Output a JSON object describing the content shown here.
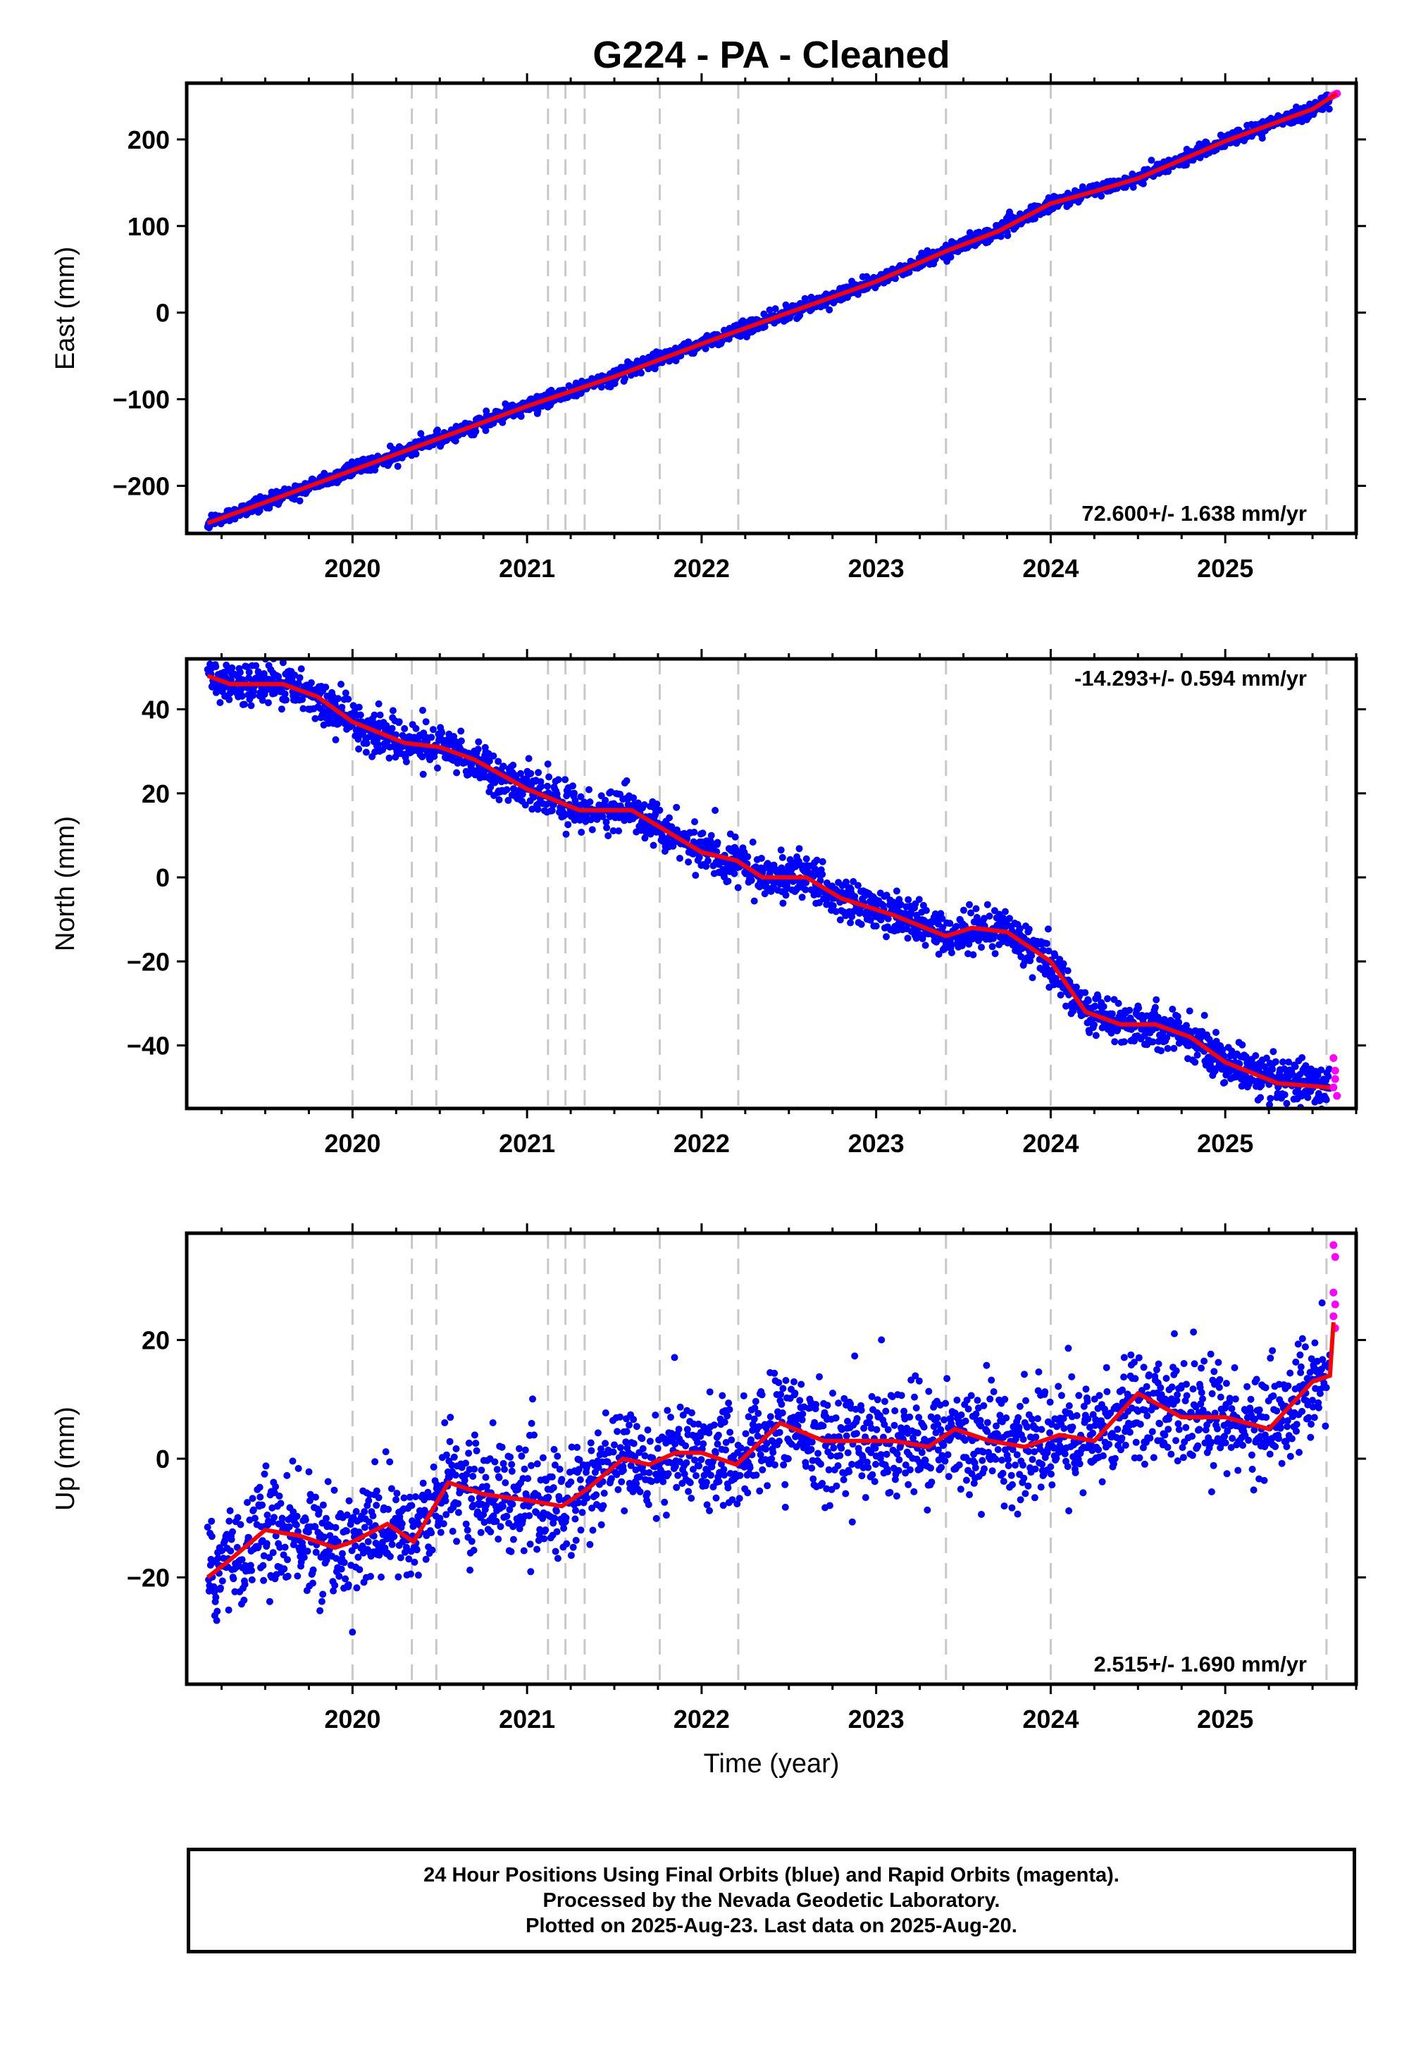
{
  "title": "G224  - PA - Cleaned",
  "colors": {
    "final": "#0000ff",
    "rapid": "#ff00ff",
    "model": "#ff0000",
    "event_line": "#c8c8c8",
    "axes": "#000000"
  },
  "chart_data": [
    {
      "type": "scatter",
      "ylabel": "East (mm)",
      "xlabel": "",
      "xlim": [
        2019.05,
        2025.75
      ],
      "ylim": [
        -255,
        265
      ],
      "yticks": [
        -200,
        -100,
        0,
        100,
        200
      ],
      "xticks": [
        2020,
        2021,
        2022,
        2023,
        2024,
        2025
      ],
      "rate_label": "72.600+/- 1.638 mm/yr",
      "rate_position": "bottom-right",
      "model": [
        [
          2019.17,
          -243
        ],
        [
          2019.5,
          -219
        ],
        [
          2020.0,
          -182
        ],
        [
          2020.5,
          -145
        ],
        [
          2021.0,
          -108
        ],
        [
          2021.5,
          -74
        ],
        [
          2022.0,
          -36
        ],
        [
          2022.5,
          0
        ],
        [
          2023.0,
          36
        ],
        [
          2023.4,
          71
        ],
        [
          2023.7,
          94
        ],
        [
          2024.0,
          126
        ],
        [
          2024.25,
          140
        ],
        [
          2024.5,
          155
        ],
        [
          2025.0,
          198
        ],
        [
          2025.5,
          235
        ],
        [
          2025.64,
          253
        ]
      ],
      "noise": 4,
      "rapid": [
        [
          2025.61,
          250
        ],
        [
          2025.62,
          251
        ],
        [
          2025.63,
          252
        ],
        [
          2025.64,
          253
        ]
      ]
    },
    {
      "type": "scatter",
      "ylabel": "North (mm)",
      "xlabel": "",
      "xlim": [
        2019.05,
        2025.75
      ],
      "ylim": [
        -55,
        52
      ],
      "yticks": [
        -40,
        -20,
        0,
        20,
        40
      ],
      "xticks": [
        2020,
        2021,
        2022,
        2023,
        2024,
        2025
      ],
      "rate_label": "-14.293+/- 0.594 mm/yr",
      "rate_position": "top-right",
      "model": [
        [
          2019.17,
          48
        ],
        [
          2019.3,
          46
        ],
        [
          2019.6,
          46
        ],
        [
          2019.8,
          43
        ],
        [
          2020.0,
          37
        ],
        [
          2020.3,
          32
        ],
        [
          2020.5,
          31
        ],
        [
          2020.7,
          28
        ],
        [
          2021.0,
          21
        ],
        [
          2021.3,
          16
        ],
        [
          2021.6,
          16
        ],
        [
          2021.8,
          11
        ],
        [
          2022.0,
          6
        ],
        [
          2022.2,
          4
        ],
        [
          2022.35,
          0
        ],
        [
          2022.6,
          0
        ],
        [
          2022.8,
          -5
        ],
        [
          2023.1,
          -9
        ],
        [
          2023.4,
          -14
        ],
        [
          2023.55,
          -12
        ],
        [
          2023.75,
          -13
        ],
        [
          2024.0,
          -20
        ],
        [
          2024.2,
          -32
        ],
        [
          2024.4,
          -35
        ],
        [
          2024.6,
          -35
        ],
        [
          2024.8,
          -38
        ],
        [
          2025.0,
          -44
        ],
        [
          2025.3,
          -49
        ],
        [
          2025.6,
          -50
        ]
      ],
      "noise": 2.5,
      "rapid": [
        [
          2025.62,
          -43
        ],
        [
          2025.63,
          -48
        ],
        [
          2025.64,
          -52
        ],
        [
          2025.62,
          -50
        ],
        [
          2025.63,
          -46
        ]
      ]
    },
    {
      "type": "scatter",
      "ylabel": "Up (mm)",
      "xlabel": "Time (year)",
      "xlim": [
        2019.05,
        2025.75
      ],
      "ylim": [
        -38,
        38
      ],
      "yticks": [
        -20,
        0,
        20
      ],
      "xticks": [
        2020,
        2021,
        2022,
        2023,
        2024,
        2025
      ],
      "rate_label": "2.515+/- 1.690 mm/yr",
      "rate_position": "bottom-right",
      "model": [
        [
          2019.17,
          -20
        ],
        [
          2019.3,
          -17
        ],
        [
          2019.5,
          -12
        ],
        [
          2019.7,
          -13
        ],
        [
          2019.9,
          -15
        ],
        [
          2020.0,
          -14
        ],
        [
          2020.2,
          -11
        ],
        [
          2020.35,
          -14
        ],
        [
          2020.55,
          -4
        ],
        [
          2020.75,
          -6
        ],
        [
          2021.0,
          -7
        ],
        [
          2021.2,
          -8
        ],
        [
          2021.35,
          -5
        ],
        [
          2021.55,
          0
        ],
        [
          2021.7,
          -1
        ],
        [
          2021.85,
          1
        ],
        [
          2022.0,
          1
        ],
        [
          2022.2,
          -1
        ],
        [
          2022.45,
          6
        ],
        [
          2022.7,
          3
        ],
        [
          2022.9,
          3
        ],
        [
          2023.1,
          3
        ],
        [
          2023.3,
          2
        ],
        [
          2023.45,
          5
        ],
        [
          2023.65,
          3
        ],
        [
          2023.85,
          2
        ],
        [
          2024.05,
          4
        ],
        [
          2024.25,
          3
        ],
        [
          2024.5,
          11
        ],
        [
          2024.75,
          7
        ],
        [
          2025.0,
          7
        ],
        [
          2025.25,
          5
        ],
        [
          2025.5,
          13
        ],
        [
          2025.6,
          14
        ],
        [
          2025.62,
          23
        ]
      ],
      "noise": 4.5,
      "rapid": [
        [
          2025.62,
          36
        ],
        [
          2025.63,
          34
        ],
        [
          2025.62,
          28
        ],
        [
          2025.63,
          26
        ],
        [
          2025.62,
          24
        ],
        [
          2025.63,
          22
        ]
      ]
    }
  ],
  "event_lines": [
    2020.0,
    2020.34,
    2020.48,
    2021.12,
    2021.22,
    2021.33,
    2021.76,
    2022.21,
    2023.4,
    2024.0,
    2025.58
  ],
  "footer": {
    "line1": "24 Hour Positions Using Final Orbits (blue) and Rapid Orbits (magenta).",
    "line2": "Processed by the Nevada Geodetic Laboratory.",
    "line3": "Plotted on 2025-Aug-23. Last data on 2025-Aug-20."
  }
}
